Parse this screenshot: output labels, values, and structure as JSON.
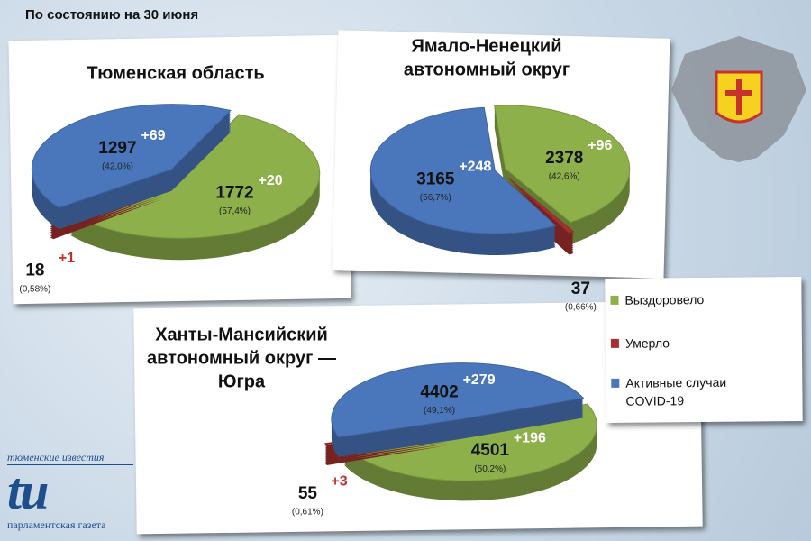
{
  "header": "По состоянию на 30 июня",
  "legend": {
    "names": [
      "Выздоровело",
      "Умерло",
      "Активные случаи COVID-19"
    ],
    "colors": [
      "#8db04a",
      "#a8312f",
      "#4a77bc"
    ]
  },
  "logo": {
    "top": "тюменские известия",
    "mark": "tu",
    "bottom": "парламентская газета"
  },
  "chart_data": [
    {
      "type": "pie",
      "title": [
        "Тюменская область"
      ],
      "values": [
        1772,
        18,
        1297
      ],
      "percents": [
        57.4,
        0.58,
        42.0
      ],
      "percent_labels": [
        "(57,4%)",
        "(0,58%)",
        "(42,0%)"
      ],
      "changes": [
        20,
        1,
        69
      ],
      "change_labels": [
        "+20",
        "+1",
        "+69"
      ]
    },
    {
      "type": "pie",
      "title": [
        "Ямало-Ненецкий",
        "автономный округ"
      ],
      "values": [
        2378,
        37,
        3165
      ],
      "percents": [
        42.6,
        0.66,
        56.7
      ],
      "percent_labels": [
        "(42,6%)",
        "(0,66%)",
        "(56,7%)"
      ],
      "changes": [
        96,
        null,
        248
      ],
      "change_labels": [
        "+96",
        null,
        "+248"
      ]
    },
    {
      "type": "pie",
      "title": [
        "Ханты-Мансийский",
        "автономный округ —",
        "Югра"
      ],
      "values": [
        4501,
        55,
        4402
      ],
      "percents": [
        50.2,
        0.61,
        49.1
      ],
      "percent_labels": [
        "(50,2%)",
        "(0,61%)",
        "(49,1%)"
      ],
      "changes": [
        196,
        3,
        279
      ],
      "change_labels": [
        "+196",
        "+3",
        "+279"
      ]
    }
  ]
}
